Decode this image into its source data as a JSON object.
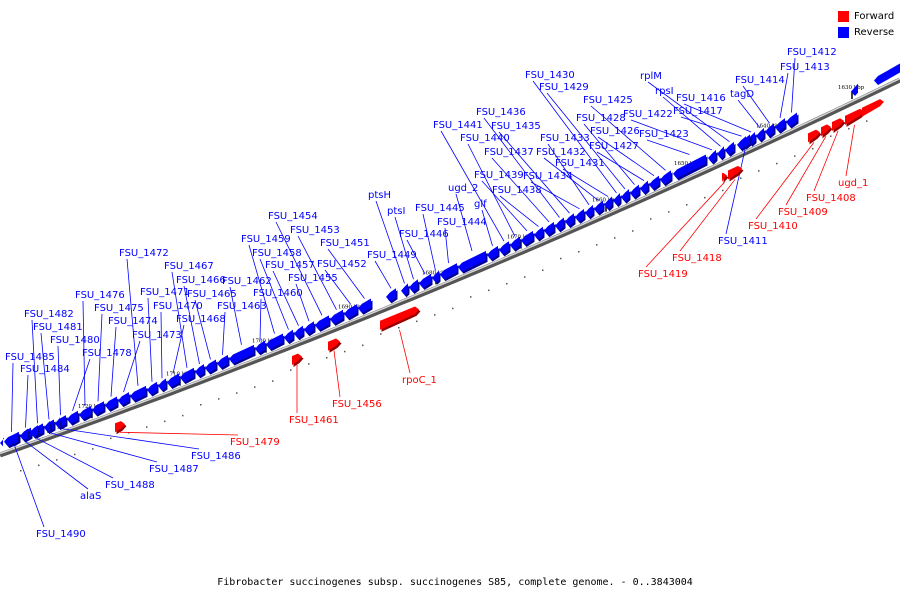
{
  "caption": "Fibrobacter succinogenes subsp. succinogenes S85, complete genome. - 0..3843004",
  "legend": [
    {
      "label": "Forward",
      "color": "#ff0000"
    },
    {
      "label": "Reverse",
      "color": "#0000ff"
    }
  ],
  "colors": {
    "forward": "#ff0000",
    "reverse": "#0000ff",
    "backbone": "#7a7a7a"
  },
  "ticks": [
    "1630 kbp",
    "1640 kbp",
    "1650 kbp",
    "1660 kbp",
    "1670 kbp",
    "1680 kbp",
    "1690 kbp",
    "1700 kbp",
    "1710 kbp",
    "1720 kbp"
  ],
  "genes": [
    {
      "name": "FSU_1412",
      "strand": "reverse"
    },
    {
      "name": "FSU_1413",
      "strand": "reverse"
    },
    {
      "name": "FSU_1414",
      "strand": "reverse"
    },
    {
      "name": "tagD",
      "strand": "reverse"
    },
    {
      "name": "FSU_1416",
      "strand": "reverse"
    },
    {
      "name": "FSU_1417",
      "strand": "reverse"
    },
    {
      "name": "rplM",
      "strand": "reverse"
    },
    {
      "name": "rpsI",
      "strand": "reverse"
    },
    {
      "name": "FSU_1422",
      "strand": "reverse"
    },
    {
      "name": "FSU_1423",
      "strand": "reverse"
    },
    {
      "name": "FSU_1425",
      "strand": "reverse"
    },
    {
      "name": "FSU_1426",
      "strand": "reverse"
    },
    {
      "name": "FSU_1427",
      "strand": "reverse"
    },
    {
      "name": "FSU_1428",
      "strand": "reverse"
    },
    {
      "name": "FSU_1429",
      "strand": "reverse"
    },
    {
      "name": "FSU_1430",
      "strand": "reverse"
    },
    {
      "name": "FSU_1431",
      "strand": "reverse"
    },
    {
      "name": "FSU_1432",
      "strand": "reverse"
    },
    {
      "name": "FSU_1433",
      "strand": "reverse"
    },
    {
      "name": "FSU_1434",
      "strand": "reverse"
    },
    {
      "name": "FSU_1435",
      "strand": "reverse"
    },
    {
      "name": "FSU_1436",
      "strand": "reverse"
    },
    {
      "name": "FSU_1437",
      "strand": "reverse"
    },
    {
      "name": "FSU_1438",
      "strand": "reverse"
    },
    {
      "name": "FSU_1439",
      "strand": "reverse"
    },
    {
      "name": "FSU_1440",
      "strand": "reverse"
    },
    {
      "name": "FSU_1441",
      "strand": "reverse"
    },
    {
      "name": "glf",
      "strand": "reverse"
    },
    {
      "name": "ugd_2",
      "strand": "reverse"
    },
    {
      "name": "FSU_1444",
      "strand": "reverse"
    },
    {
      "name": "FSU_1445",
      "strand": "reverse"
    },
    {
      "name": "FSU_1446",
      "strand": "reverse"
    },
    {
      "name": "ptsI",
      "strand": "reverse"
    },
    {
      "name": "ptsH",
      "strand": "reverse"
    },
    {
      "name": "FSU_1449",
      "strand": "reverse"
    },
    {
      "name": "FSU_1451",
      "strand": "reverse"
    },
    {
      "name": "FSU_1452",
      "strand": "reverse"
    },
    {
      "name": "FSU_1453",
      "strand": "reverse"
    },
    {
      "name": "FSU_1454",
      "strand": "reverse"
    },
    {
      "name": "FSU_1455",
      "strand": "reverse"
    },
    {
      "name": "FSU_1457",
      "strand": "reverse"
    },
    {
      "name": "FSU_1458",
      "strand": "reverse"
    },
    {
      "name": "FSU_1459",
      "strand": "reverse"
    },
    {
      "name": "FSU_1460",
      "strand": "reverse"
    },
    {
      "name": "FSU_1462",
      "strand": "reverse"
    },
    {
      "name": "FSU_1463",
      "strand": "reverse"
    },
    {
      "name": "FSU_1465",
      "strand": "reverse"
    },
    {
      "name": "FSU_1466",
      "strand": "reverse"
    },
    {
      "name": "FSU_1467",
      "strand": "reverse"
    },
    {
      "name": "FSU_1468",
      "strand": "reverse"
    },
    {
      "name": "FSU_1470",
      "strand": "reverse"
    },
    {
      "name": "FSU_1471",
      "strand": "reverse"
    },
    {
      "name": "FSU_1472",
      "strand": "reverse"
    },
    {
      "name": "FSU_1473",
      "strand": "reverse"
    },
    {
      "name": "FSU_1474",
      "strand": "reverse"
    },
    {
      "name": "FSU_1475",
      "strand": "reverse"
    },
    {
      "name": "FSU_1476",
      "strand": "reverse"
    },
    {
      "name": "FSU_1478",
      "strand": "reverse"
    },
    {
      "name": "FSU_1480",
      "strand": "reverse"
    },
    {
      "name": "FSU_1481",
      "strand": "reverse"
    },
    {
      "name": "FSU_1482",
      "strand": "reverse"
    },
    {
      "name": "FSU_1484",
      "strand": "reverse"
    },
    {
      "name": "FSU_1485",
      "strand": "reverse"
    },
    {
      "name": "FSU_1486",
      "strand": "reverse"
    },
    {
      "name": "FSU_1487",
      "strand": "reverse"
    },
    {
      "name": "FSU_1488",
      "strand": "reverse"
    },
    {
      "name": "alaS",
      "strand": "reverse"
    },
    {
      "name": "FSU_1490",
      "strand": "reverse"
    },
    {
      "name": "FSU_1411",
      "strand": "reverse"
    },
    {
      "name": "ugd_1",
      "strand": "forward"
    },
    {
      "name": "FSU_1408",
      "strand": "forward"
    },
    {
      "name": "FSU_1409",
      "strand": "forward"
    },
    {
      "name": "FSU_1410",
      "strand": "forward"
    },
    {
      "name": "FSU_1418",
      "strand": "forward"
    },
    {
      "name": "FSU_1419",
      "strand": "forward"
    },
    {
      "name": "rpoC_1",
      "strand": "forward"
    },
    {
      "name": "FSU_1456",
      "strand": "forward"
    },
    {
      "name": "FSU_1461",
      "strand": "forward"
    },
    {
      "name": "FSU_1479",
      "strand": "forward"
    }
  ]
}
